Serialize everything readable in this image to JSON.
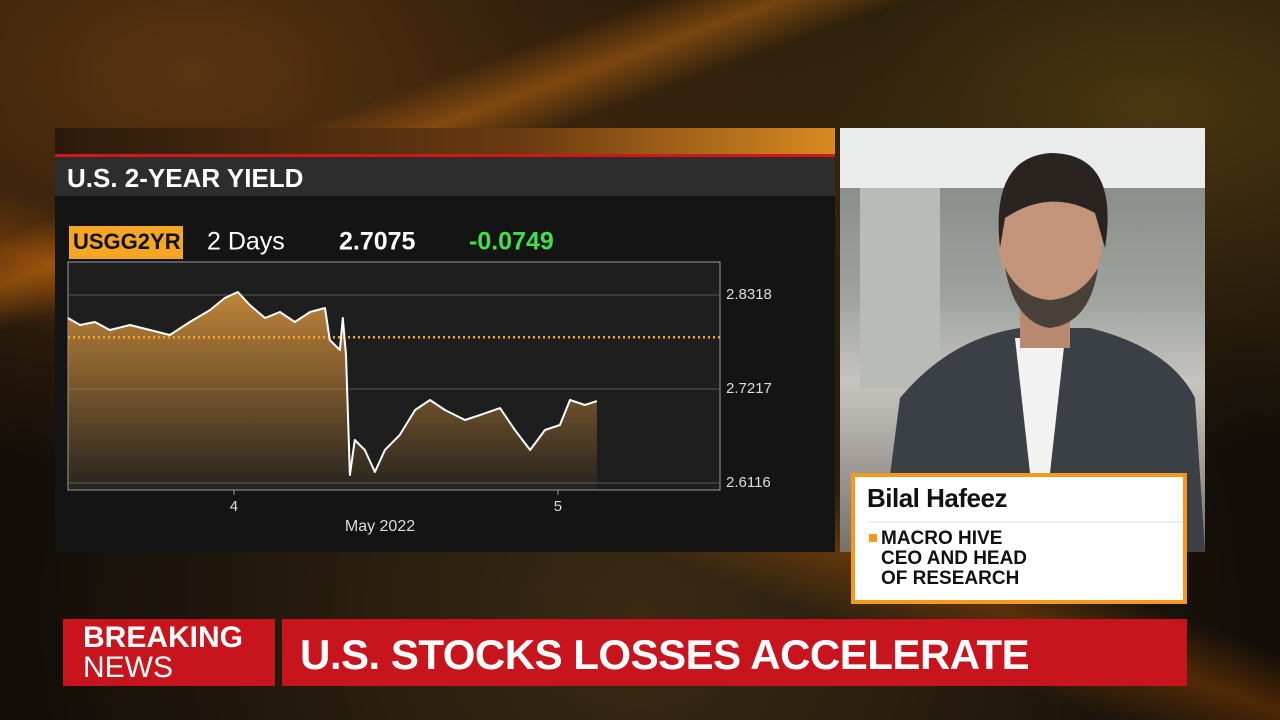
{
  "chart_data": {
    "type": "line",
    "title": "U.S. 2-YEAR YIELD",
    "ticker": "USGG2YR",
    "period": "2 Days",
    "last_value": 2.7075,
    "change": -0.0749,
    "x_label": "May 2022",
    "x": [
      3.488,
      3.525,
      3.571,
      3.617,
      3.679,
      3.741,
      3.802,
      3.864,
      3.926,
      3.972,
      4.012,
      4.049,
      4.096,
      4.142,
      4.188,
      4.235,
      4.281,
      4.296,
      4.327,
      4.336,
      4.346,
      4.358,
      4.373,
      4.404,
      4.435,
      4.466,
      4.512,
      4.559,
      4.605,
      4.651,
      4.713,
      4.759,
      4.821,
      4.867,
      4.914,
      4.96,
      5.006,
      5.037,
      5.083,
      5.12
    ],
    "values": [
      2.8049,
      2.7967,
      2.8002,
      2.7908,
      2.7967,
      2.7908,
      2.785,
      2.8002,
      2.8142,
      2.8283,
      2.8353,
      2.8201,
      2.8049,
      2.8119,
      2.8002,
      2.8119,
      2.8166,
      2.7791,
      2.7674,
      2.8049,
      2.7615,
      2.621,
      2.662,
      2.6503,
      2.6245,
      2.6503,
      2.6679,
      2.6971,
      2.7088,
      2.6971,
      2.6854,
      2.6912,
      2.6994,
      2.6737,
      2.6503,
      2.6737,
      2.6795,
      2.7088,
      2.703,
      2.7075
    ],
    "color": "#ffffff",
    "fill_color": "#c98a3a",
    "reference_line": 2.7824,
    "reference_color": "#f5a623",
    "xlim": [
      3.488,
      5.5
    ],
    "xticks": [
      4,
      5
    ],
    "ylim": [
      2.6034,
      2.8705
    ],
    "yticks": [
      2.8318,
      2.7217,
      2.6116
    ],
    "grid": true
  },
  "lower_third": {
    "name": "Bilal Hafeez",
    "role_lines": [
      "MACRO HIVE",
      "CEO AND HEAD",
      "OF RESEARCH"
    ]
  },
  "banner": {
    "label_lines": [
      "BREAKING",
      "NEWS"
    ],
    "headline": "U.S. STOCKS LOSSES ACCELERATE"
  }
}
